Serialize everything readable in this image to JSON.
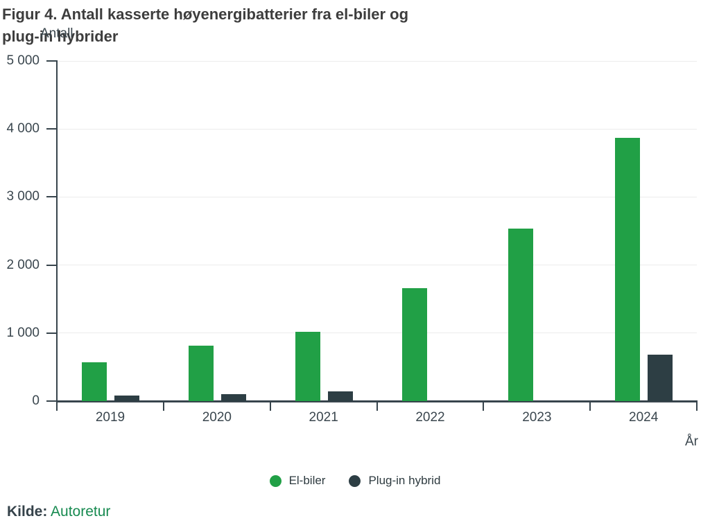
{
  "title": {
    "line1": "Figur 4. Antall kasserte høyenergibatterier fra el-biler og",
    "line2": "plug-in hybrider"
  },
  "y_axis": {
    "title": "Antall",
    "tick_labels": [
      "0",
      "1 000",
      "2 000",
      "3 000",
      "4 000",
      "5 000"
    ]
  },
  "x_axis": {
    "title": "År"
  },
  "legend": [
    {
      "label": "El-biler",
      "color": "#21a046"
    },
    {
      "label": "Plug-in hybrid",
      "color": "#2d3e44"
    }
  ],
  "source": {
    "label": "Kilde:",
    "value": "Autoretur"
  },
  "colors": {
    "green": "#21a046",
    "dark": "#2d3e44",
    "axis": "#37444c",
    "grid": "#ececec",
    "tick_text": "#3a464e",
    "title_text": "#3d3d3d",
    "link_green": "#178a50"
  },
  "chart_data": {
    "type": "bar",
    "title": "Figur 4. Antall kasserte høyenergibatterier fra el-biler og plug-in hybrider",
    "xlabel": "År",
    "ylabel": "Antall",
    "categories": [
      "2019",
      "2020",
      "2021",
      "2022",
      "2023",
      "2024"
    ],
    "series": [
      {
        "name": "El-biler",
        "color": "#21a046",
        "values": [
          570,
          810,
          1020,
          1660,
          2540,
          3870
        ]
      },
      {
        "name": "Plug-in hybrid",
        "color": "#2d3e44",
        "values": [
          80,
          100,
          140,
          0,
          0,
          680
        ]
      }
    ],
    "ylim": [
      0,
      5000
    ],
    "yticks": [
      0,
      1000,
      2000,
      3000,
      4000,
      5000
    ],
    "grid": true,
    "legend_position": "bottom"
  }
}
